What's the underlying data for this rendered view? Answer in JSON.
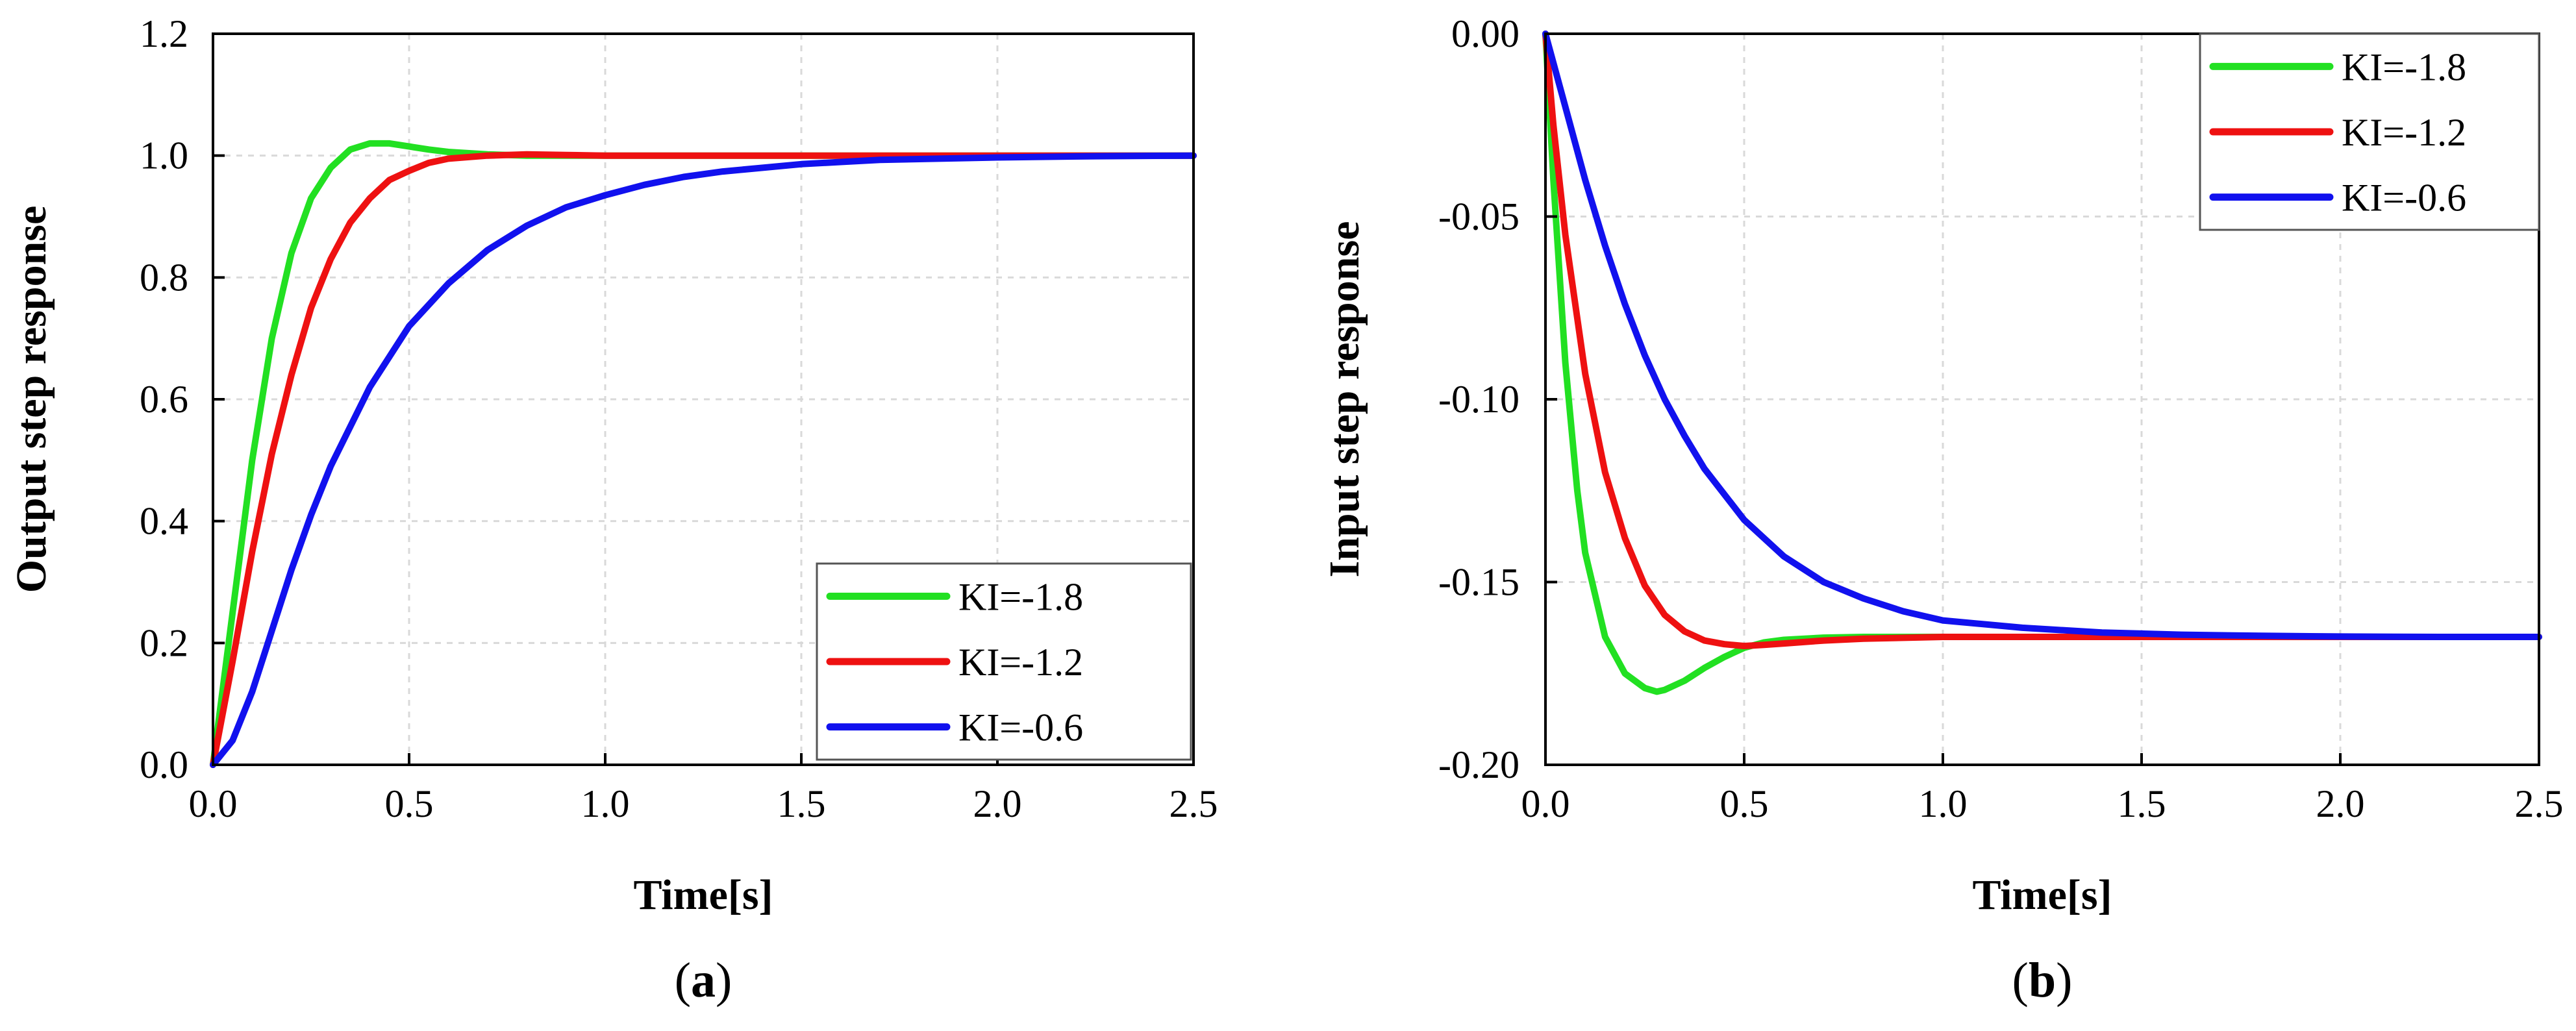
{
  "chart_data": [
    {
      "type": "line",
      "panel_label": "(a)",
      "xlabel": "Time[s]",
      "ylabel": "Output step response",
      "xlim": [
        0,
        2.5
      ],
      "ylim": [
        0,
        1.2
      ],
      "xticks": [
        "0.0",
        "0.5",
        "1.0",
        "1.5",
        "2.0",
        "2.5"
      ],
      "yticks": [
        "0.0",
        "0.2",
        "0.4",
        "0.6",
        "0.8",
        "1.0",
        "1.2"
      ],
      "grid": true,
      "legend_position": "bottom-right",
      "series": [
        {
          "name": "KI=-1.8",
          "color": "#22e022",
          "x": [
            0,
            0.05,
            0.1,
            0.15,
            0.2,
            0.25,
            0.3,
            0.35,
            0.4,
            0.45,
            0.5,
            0.55,
            0.6,
            0.7,
            0.8,
            0.9,
            1.0,
            1.5,
            2.0,
            2.5
          ],
          "y": [
            0,
            0.25,
            0.5,
            0.7,
            0.84,
            0.93,
            0.98,
            1.01,
            1.02,
            1.02,
            1.015,
            1.01,
            1.006,
            1.002,
            1.0,
            1.0,
            1.0,
            1.0,
            1.0,
            1.0
          ]
        },
        {
          "name": "KI=-1.2",
          "color": "#ee1111",
          "x": [
            0,
            0.05,
            0.1,
            0.15,
            0.2,
            0.25,
            0.3,
            0.35,
            0.4,
            0.45,
            0.5,
            0.55,
            0.6,
            0.7,
            0.8,
            0.9,
            1.0,
            1.5,
            2.0,
            2.5
          ],
          "y": [
            0,
            0.17,
            0.35,
            0.51,
            0.64,
            0.75,
            0.83,
            0.89,
            0.93,
            0.96,
            0.975,
            0.988,
            0.995,
            1.0,
            1.002,
            1.001,
            1.0,
            1.0,
            1.0,
            1.0
          ]
        },
        {
          "name": "KI=-0.6",
          "color": "#1111ee",
          "x": [
            0,
            0.05,
            0.1,
            0.15,
            0.2,
            0.25,
            0.3,
            0.4,
            0.5,
            0.6,
            0.7,
            0.8,
            0.9,
            1.0,
            1.1,
            1.2,
            1.3,
            1.5,
            1.7,
            2.0,
            2.25,
            2.5
          ],
          "y": [
            0,
            0.04,
            0.12,
            0.22,
            0.32,
            0.41,
            0.49,
            0.62,
            0.72,
            0.79,
            0.845,
            0.885,
            0.915,
            0.935,
            0.952,
            0.965,
            0.974,
            0.986,
            0.993,
            0.997,
            0.999,
            1.0
          ]
        }
      ]
    },
    {
      "type": "line",
      "panel_label": "(b)",
      "xlabel": "Time[s]",
      "ylabel": "Input step response",
      "xlim": [
        0,
        2.5
      ],
      "ylim": [
        -0.2,
        0
      ],
      "xticks": [
        "0.0",
        "0.5",
        "1.0",
        "1.5",
        "2.0",
        "2.5"
      ],
      "yticks": [
        "0.00",
        "-0.05",
        "-0.10",
        "-0.15",
        "-0.20"
      ],
      "grid": true,
      "legend_position": "top-right",
      "series": [
        {
          "name": "KI=-1.8",
          "color": "#22e022",
          "x": [
            0,
            0.02,
            0.05,
            0.08,
            0.1,
            0.15,
            0.2,
            0.25,
            0.28,
            0.3,
            0.35,
            0.4,
            0.45,
            0.5,
            0.55,
            0.6,
            0.7,
            0.8,
            1.0,
            1.5,
            2.0,
            2.5
          ],
          "y": [
            0,
            -0.04,
            -0.09,
            -0.125,
            -0.142,
            -0.165,
            -0.175,
            -0.179,
            -0.18,
            -0.1795,
            -0.177,
            -0.1735,
            -0.1705,
            -0.168,
            -0.1665,
            -0.1658,
            -0.1652,
            -0.165,
            -0.165,
            -0.165,
            -0.165,
            -0.165
          ]
        },
        {
          "name": "KI=-1.2",
          "color": "#ee1111",
          "x": [
            0,
            0.02,
            0.05,
            0.1,
            0.15,
            0.2,
            0.25,
            0.3,
            0.35,
            0.4,
            0.45,
            0.5,
            0.55,
            0.6,
            0.7,
            0.8,
            1.0,
            1.5,
            2.0,
            2.5
          ],
          "y": [
            0,
            -0.025,
            -0.055,
            -0.093,
            -0.12,
            -0.138,
            -0.151,
            -0.159,
            -0.1635,
            -0.166,
            -0.167,
            -0.1675,
            -0.1672,
            -0.1668,
            -0.166,
            -0.1655,
            -0.165,
            -0.165,
            -0.165,
            -0.165
          ]
        },
        {
          "name": "KI=-0.6",
          "color": "#1111ee",
          "x": [
            0,
            0.05,
            0.1,
            0.15,
            0.2,
            0.25,
            0.3,
            0.35,
            0.4,
            0.5,
            0.6,
            0.7,
            0.8,
            0.9,
            1.0,
            1.2,
            1.4,
            1.6,
            1.8,
            2.0,
            2.25,
            2.5
          ],
          "y": [
            0,
            -0.02,
            -0.04,
            -0.058,
            -0.074,
            -0.088,
            -0.1,
            -0.11,
            -0.119,
            -0.133,
            -0.143,
            -0.15,
            -0.1545,
            -0.158,
            -0.1605,
            -0.1625,
            -0.1638,
            -0.1644,
            -0.1647,
            -0.1649,
            -0.165,
            -0.165
          ]
        }
      ]
    }
  ]
}
